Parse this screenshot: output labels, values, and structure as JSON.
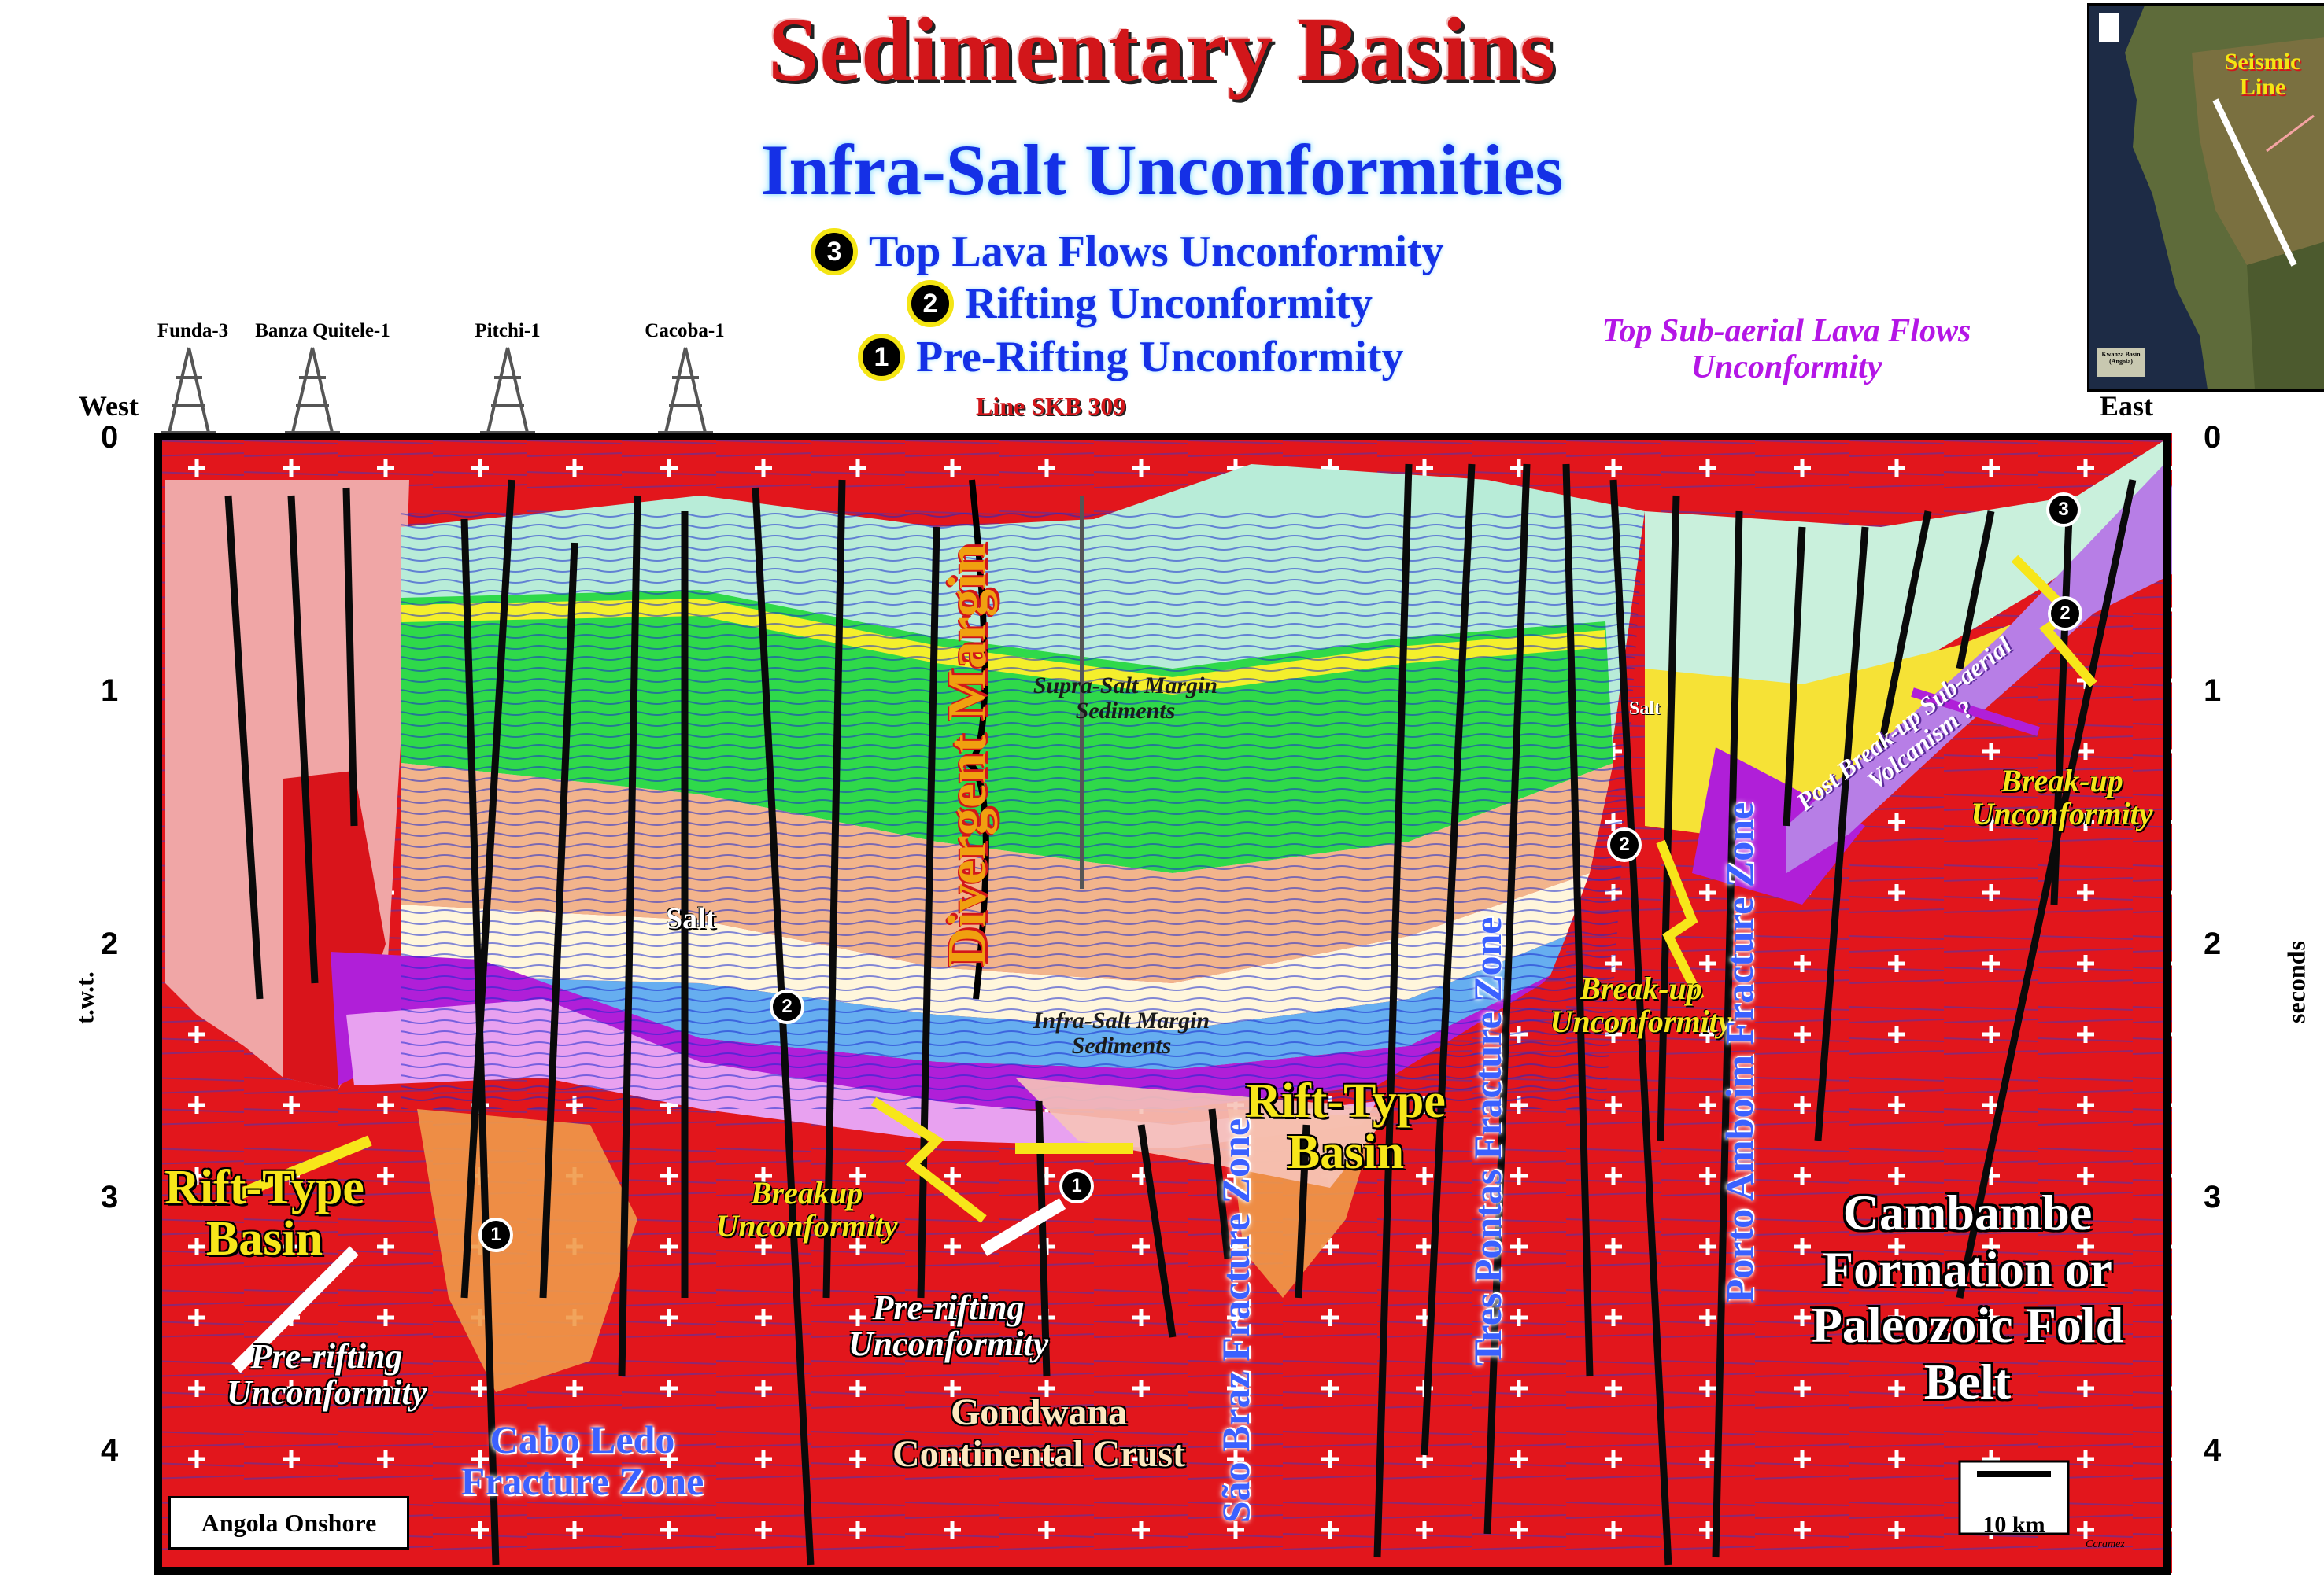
{
  "header": {
    "title": "Sedimentary Basins",
    "subtitle": "Infra-Salt Unconformities"
  },
  "legend": [
    {
      "num": "3",
      "label": "Top Lava Flows Unconformity"
    },
    {
      "num": "2",
      "label": "Rifting Unconformity"
    },
    {
      "num": "1",
      "label": "Pre-Rifting Unconformity"
    }
  ],
  "line_name": "Line SKB 309",
  "wells": [
    "Funda-3",
    "Banza Quitele-1",
    "Pitchi-1",
    "Cacoba-1"
  ],
  "directions": {
    "west": "West",
    "east": "East"
  },
  "axis": {
    "left_label": "t.w.t.",
    "right_label": "seconds",
    "ticks": [
      "0",
      "1",
      "2",
      "3",
      "4"
    ]
  },
  "inset_map": {
    "label": "Seismic Line",
    "footer": "Kwanza Basin (Angola)"
  },
  "annotations": {
    "top_lava": "Top Sub-aerial Lava Flows Unconformity",
    "divergent_margin": "Divergent Margin",
    "supra_salt": "Supra-Salt Margin Sediments",
    "infra_salt": "Infra-Salt Margin Sediments",
    "salt_1": "Salt",
    "salt_2": "Salt",
    "post_breakup": "Post Break-up Sub-aerial Volcanism ?",
    "breakup_left": "Breakup Unconformity",
    "breakup_mid": "Break-up Unconformity",
    "breakup_right": "Break-up Unconformity",
    "rift_left": "Rift-Type Basin",
    "rift_mid": "Rift-Type Basin",
    "prerift_left": "Pre-rifting Unconformity",
    "prerift_mid": "Pre-rifting Unconformity",
    "cabo_ledo": "Cabo Ledo Fracture Zone",
    "sao_braz": "São Braz Fracture Zone",
    "tres_pontas": "Tres Pontas Fracture Zone",
    "porto_amboim": "Porto Amboim Fracture Zone",
    "gondwana": "Gondwana Continental Crust",
    "cambambe": "Cambambe Formation or Paleozoic Fold Belt",
    "location_box": "Angola Onshore",
    "scale": "10 km",
    "credit": "Ccramez"
  },
  "colors": {
    "crust": "#e2161c",
    "salt": "#b01fd8",
    "title": "#d2161a",
    "subtitle": "#1530e6",
    "lava": "#b77ee6"
  }
}
